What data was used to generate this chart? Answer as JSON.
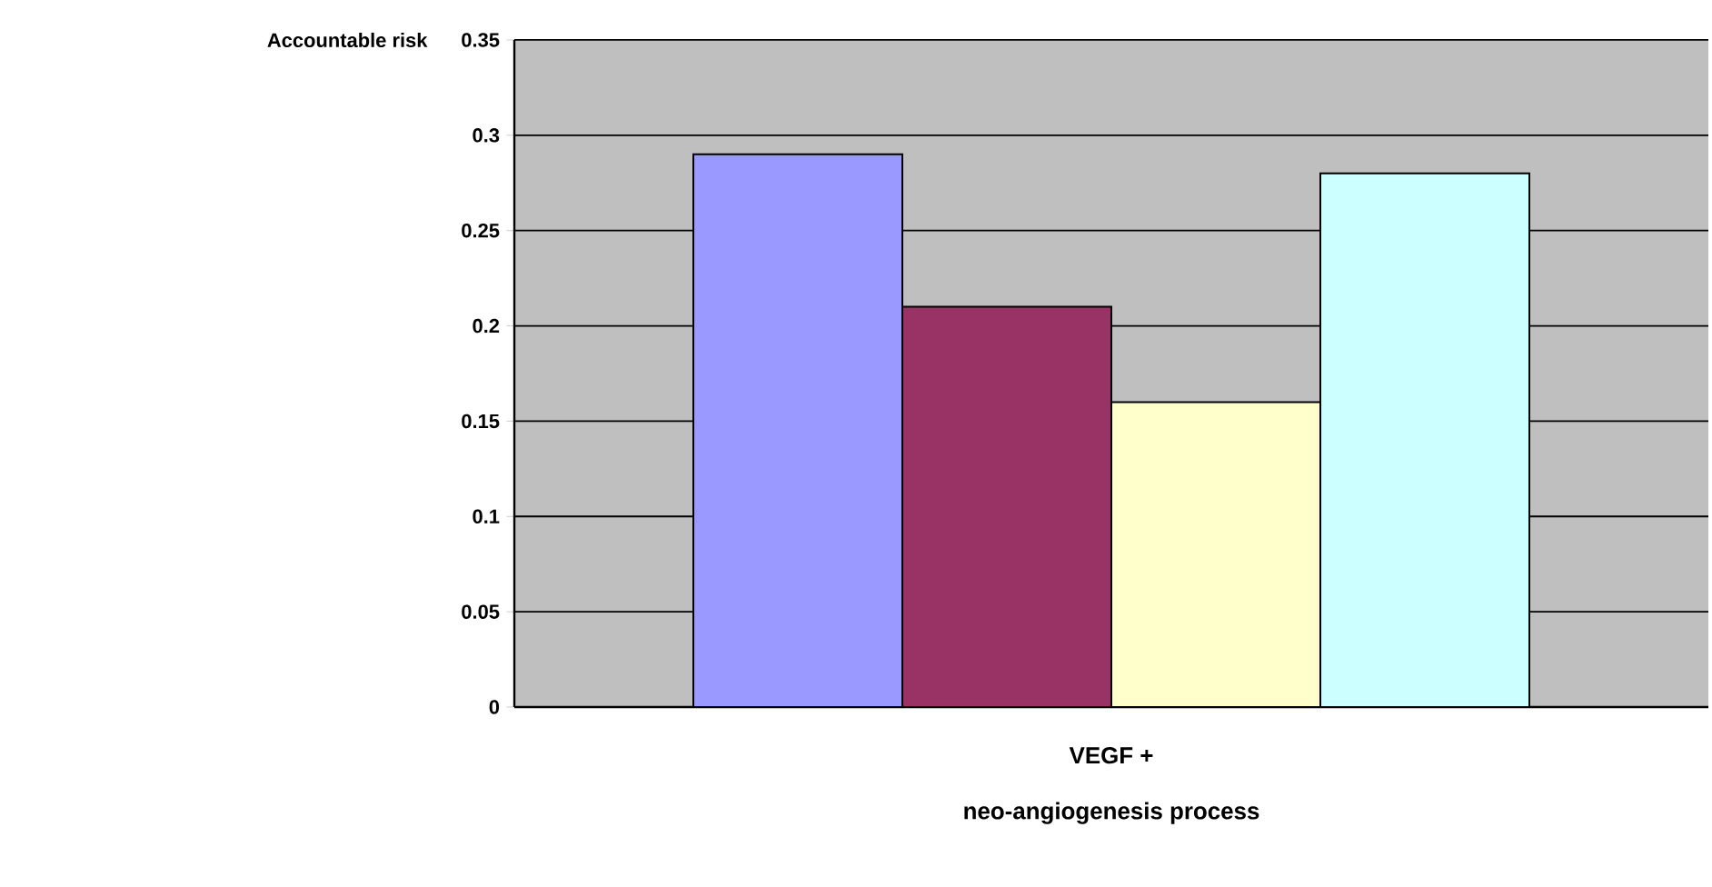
{
  "chart_data": {
    "type": "bar",
    "xlabel": "neo-angiogenesis process",
    "ylabel": "Accountable risk",
    "categories": [
      "VEGF +"
    ],
    "series": [
      {
        "color": "#9999ff",
        "values": [
          0.29
        ]
      },
      {
        "color": "#993366",
        "values": [
          0.21
        ]
      },
      {
        "color": "#ffffcc",
        "values": [
          0.16
        ]
      },
      {
        "color": "#ccffff",
        "values": [
          0.28
        ]
      }
    ],
    "ylim": [
      0,
      0.35
    ],
    "yticks": [
      0,
      0.05,
      0.1,
      0.15,
      0.2,
      0.25,
      0.3,
      0.35
    ],
    "grid": "y"
  }
}
